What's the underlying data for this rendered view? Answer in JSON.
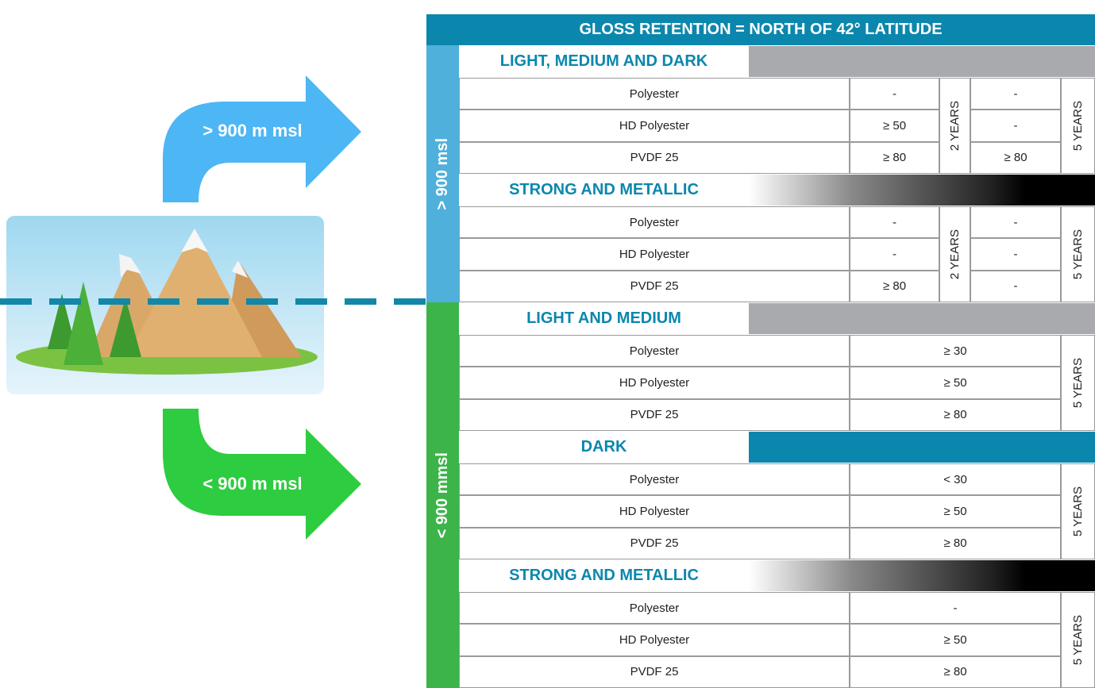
{
  "header": {
    "title": "GLOSS RETENTION = NORTH OF 42° LATITUDE"
  },
  "arrows": [
    {
      "label": "> 900 m  msl"
    },
    {
      "label": "< 900 m  msl"
    }
  ],
  "zones": [
    {
      "label": "> 900 msl",
      "sections": [
        {
          "title": "LIGHT, MEDIUM AND DARK",
          "periods": [
            "2 YEARS",
            "5 YEARS"
          ],
          "rows": [
            {
              "name": "Polyester",
              "values": [
                "-",
                "-"
              ]
            },
            {
              "name": "HD Polyester",
              "values": [
                "≥ 50",
                "-"
              ]
            },
            {
              "name": "PVDF 25",
              "values": [
                "≥ 80",
                "≥ 80"
              ]
            }
          ]
        },
        {
          "title": "STRONG AND METALLIC",
          "periods": [
            "2 YEARS",
            "5 YEARS"
          ],
          "rows": [
            {
              "name": "Polyester",
              "values": [
                "-",
                "-"
              ]
            },
            {
              "name": "HD Polyester",
              "values": [
                "-",
                "-"
              ]
            },
            {
              "name": "PVDF 25",
              "values": [
                "≥ 80",
                "-"
              ]
            }
          ]
        }
      ]
    },
    {
      "label": "< 900 mmsl",
      "sections": [
        {
          "title": "LIGHT AND MEDIUM",
          "periods": [
            "5 YEARS"
          ],
          "rows": [
            {
              "name": "Polyester",
              "values": [
                "≥ 30"
              ]
            },
            {
              "name": "HD Polyester",
              "values": [
                "≥ 50"
              ]
            },
            {
              "name": "PVDF 25",
              "values": [
                "≥ 80"
              ]
            }
          ]
        },
        {
          "title": "DARK",
          "periods": [
            "5 YEARS"
          ],
          "rows": [
            {
              "name": "Polyester",
              "values": [
                "< 30"
              ]
            },
            {
              "name": "HD Polyester",
              "values": [
                "≥ 50"
              ]
            },
            {
              "name": "PVDF 25",
              "values": [
                "≥ 80"
              ]
            }
          ]
        },
        {
          "title": "STRONG AND METALLIC",
          "periods": [
            "5 YEARS"
          ],
          "rows": [
            {
              "name": "Polyester",
              "values": [
                "-"
              ]
            },
            {
              "name": "HD Polyester",
              "values": [
                "≥ 50"
              ]
            },
            {
              "name": "PVDF 25",
              "values": [
                "≥ 80"
              ]
            }
          ]
        }
      ]
    }
  ]
}
